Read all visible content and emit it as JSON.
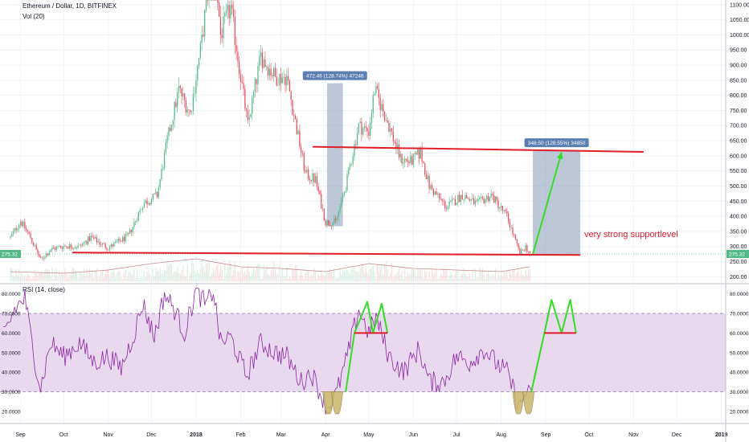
{
  "header": {
    "title": "Ethereum / Dollar, 1D, BITFINEX",
    "volume_label": "Vol (20)",
    "rsi_label": "RSI (14, close)"
  },
  "colors": {
    "up": "#53b987",
    "down": "#eb4d5c",
    "rsi_line": "#8e24aa",
    "rsi_band": "#e8d9ee",
    "annotation_red": "#e11d2a",
    "annotation_green": "#33dd22",
    "measure_box": "#8fa3bd",
    "measure_label_bg": "#5b7fb3",
    "last_price_bg": "#53b987",
    "dip_fill": "#c9b46a"
  },
  "chart_data": [
    {
      "type": "candlestick",
      "title": "Ethereum / Dollar, 1D, BITFINEX",
      "x_ticks": [
        "Sep",
        "Oct",
        "Nov",
        "Dec",
        "2018",
        "Feb",
        "Mar",
        "Apr",
        "May",
        "Jun",
        "Jul",
        "Aug",
        "Sep",
        "Oct",
        "Nov",
        "Dec",
        "2019"
      ],
      "y_ticks": [
        200,
        250,
        300,
        350,
        400,
        450,
        500,
        550,
        600,
        650,
        700,
        750,
        800,
        850,
        900,
        950,
        1000,
        1050,
        1100
      ],
      "y_tick_labels": [
        "200.00",
        "250.00",
        "300.00",
        "350.00",
        "400.00",
        "450.00",
        "500.00",
        "550.00",
        "600.00",
        "650.00",
        "700.00",
        "750.00",
        "800.00",
        "850.00",
        "900.00",
        "950.00",
        "1000.00",
        "1050.00",
        "1100.00"
      ],
      "ylim": [
        185,
        1110
      ],
      "last_price": 275.32,
      "last_price_label": "275.32",
      "left_axis_marker": "275.32",
      "close_path": [
        {
          "date": "2017-08-25",
          "price": 330
        },
        {
          "date": "2017-09-01",
          "price": 385
        },
        {
          "date": "2017-09-08",
          "price": 330
        },
        {
          "date": "2017-09-15",
          "price": 255
        },
        {
          "date": "2017-09-22",
          "price": 290
        },
        {
          "date": "2017-10-01",
          "price": 302
        },
        {
          "date": "2017-10-12",
          "price": 300
        },
        {
          "date": "2017-10-20",
          "price": 330
        },
        {
          "date": "2017-11-01",
          "price": 295
        },
        {
          "date": "2017-11-15",
          "price": 335
        },
        {
          "date": "2017-11-25",
          "price": 440
        },
        {
          "date": "2017-12-05",
          "price": 470
        },
        {
          "date": "2017-12-12",
          "price": 650
        },
        {
          "date": "2017-12-20",
          "price": 820
        },
        {
          "date": "2017-12-28",
          "price": 740
        },
        {
          "date": "2018-01-05",
          "price": 980
        },
        {
          "date": "2018-01-13",
          "price": 1300
        },
        {
          "date": "2018-01-18",
          "price": 1000
        },
        {
          "date": "2018-01-25",
          "price": 1090
        },
        {
          "date": "2018-02-06",
          "price": 700
        },
        {
          "date": "2018-02-15",
          "price": 930
        },
        {
          "date": "2018-02-25",
          "price": 860
        },
        {
          "date": "2018-03-05",
          "price": 860
        },
        {
          "date": "2018-03-18",
          "price": 540
        },
        {
          "date": "2018-03-25",
          "price": 520
        },
        {
          "date": "2018-04-01",
          "price": 380
        },
        {
          "date": "2018-04-08",
          "price": 380
        },
        {
          "date": "2018-04-15",
          "price": 500
        },
        {
          "date": "2018-04-24",
          "price": 700
        },
        {
          "date": "2018-05-01",
          "price": 680
        },
        {
          "date": "2018-05-05",
          "price": 820
        },
        {
          "date": "2018-05-15",
          "price": 700
        },
        {
          "date": "2018-05-23",
          "price": 590
        },
        {
          "date": "2018-05-30",
          "price": 580
        },
        {
          "date": "2018-06-06",
          "price": 610
        },
        {
          "date": "2018-06-12",
          "price": 500
        },
        {
          "date": "2018-06-24",
          "price": 430
        },
        {
          "date": "2018-07-05",
          "price": 470
        },
        {
          "date": "2018-07-15",
          "price": 440
        },
        {
          "date": "2018-07-25",
          "price": 470
        },
        {
          "date": "2018-08-05",
          "price": 400
        },
        {
          "date": "2018-08-14",
          "price": 275
        },
        {
          "date": "2018-08-18",
          "price": 300
        },
        {
          "date": "2018-08-21",
          "price": 275
        }
      ],
      "volume_ma_path": [
        {
          "date": "2017-08-25",
          "volume": 0.3
        },
        {
          "date": "2017-10-01",
          "volume": 0.25
        },
        {
          "date": "2017-11-01",
          "volume": 0.35
        },
        {
          "date": "2017-12-01",
          "volume": 0.55
        },
        {
          "date": "2018-01-01",
          "volume": 0.7
        },
        {
          "date": "2018-02-01",
          "volume": 0.45
        },
        {
          "date": "2018-03-01",
          "volume": 0.4
        },
        {
          "date": "2018-04-01",
          "volume": 0.3
        },
        {
          "date": "2018-05-01",
          "volume": 0.55
        },
        {
          "date": "2018-06-01",
          "volume": 0.4
        },
        {
          "date": "2018-07-01",
          "volume": 0.35
        },
        {
          "date": "2018-08-01",
          "volume": 0.3
        },
        {
          "date": "2018-08-21",
          "volume": 0.45
        }
      ],
      "measure_boxes": [
        {
          "label": "472.46 (128.74%) 47246",
          "from_date": "2018-04-02",
          "to_date": "2018-04-13",
          "from_price": 367,
          "to_price": 840
        },
        {
          "label": "348.50 (128.55%) 34850",
          "from_date": "2018-08-23",
          "to_date": "2018-09-25",
          "from_price": 272,
          "to_price": 618
        }
      ],
      "annotations": [
        {
          "text": "very strong supportlevel"
        }
      ],
      "lines": [
        {
          "name": "support",
          "from": {
            "date": "2017-10-07",
            "price": 280
          },
          "to": {
            "date": "2018-09-25",
            "price": 272
          }
        },
        {
          "name": "resistance",
          "from": {
            "date": "2018-03-23",
            "price": 630
          },
          "to": {
            "date": "2018-11-08",
            "price": 613
          }
        }
      ],
      "arrow": {
        "from": {
          "date": "2018-08-23",
          "price": 275
        },
        "to": {
          "date": "2018-09-12",
          "price": 612
        }
      }
    },
    {
      "type": "line",
      "title": "RSI (14, close)",
      "y_ticks": [
        20,
        30,
        40,
        50,
        60,
        70,
        80
      ],
      "y_tick_labels": [
        "20.0000",
        "30.0000",
        "40.0000",
        "50.0000",
        "60.0000",
        "70.0000",
        "80.0000"
      ],
      "ylim": [
        15,
        84
      ],
      "band": [
        30,
        70
      ],
      "rsi_path": [
        {
          "date": "2017-08-20",
          "value": 58
        },
        {
          "date": "2017-08-28",
          "value": 72
        },
        {
          "date": "2017-09-04",
          "value": 78
        },
        {
          "date": "2017-09-10",
          "value": 50
        },
        {
          "date": "2017-09-15",
          "value": 32
        },
        {
          "date": "2017-09-22",
          "value": 55
        },
        {
          "date": "2017-10-01",
          "value": 48
        },
        {
          "date": "2017-10-12",
          "value": 55
        },
        {
          "date": "2017-10-22",
          "value": 45
        },
        {
          "date": "2017-11-01",
          "value": 48
        },
        {
          "date": "2017-11-10",
          "value": 42
        },
        {
          "date": "2017-11-20",
          "value": 62
        },
        {
          "date": "2017-11-25",
          "value": 75
        },
        {
          "date": "2017-12-03",
          "value": 58
        },
        {
          "date": "2017-12-10",
          "value": 80
        },
        {
          "date": "2017-12-17",
          "value": 72
        },
        {
          "date": "2017-12-24",
          "value": 60
        },
        {
          "date": "2018-01-01",
          "value": 82
        },
        {
          "date": "2018-01-08",
          "value": 74
        },
        {
          "date": "2018-01-13",
          "value": 82
        },
        {
          "date": "2018-01-18",
          "value": 55
        },
        {
          "date": "2018-01-25",
          "value": 58
        },
        {
          "date": "2018-02-05",
          "value": 38
        },
        {
          "date": "2018-02-15",
          "value": 55
        },
        {
          "date": "2018-02-25",
          "value": 50
        },
        {
          "date": "2018-03-05",
          "value": 48
        },
        {
          "date": "2018-03-15",
          "value": 35
        },
        {
          "date": "2018-03-22",
          "value": 40
        },
        {
          "date": "2018-03-28",
          "value": 30
        },
        {
          "date": "2018-04-02",
          "value": 22
        },
        {
          "date": "2018-04-08",
          "value": 28
        },
        {
          "date": "2018-04-15",
          "value": 45
        },
        {
          "date": "2018-04-24",
          "value": 72
        },
        {
          "date": "2018-05-01",
          "value": 60
        },
        {
          "date": "2018-05-06",
          "value": 68
        },
        {
          "date": "2018-05-15",
          "value": 48
        },
        {
          "date": "2018-05-25",
          "value": 40
        },
        {
          "date": "2018-06-05",
          "value": 52
        },
        {
          "date": "2018-06-12",
          "value": 35
        },
        {
          "date": "2018-06-22",
          "value": 35
        },
        {
          "date": "2018-07-01",
          "value": 48
        },
        {
          "date": "2018-07-10",
          "value": 45
        },
        {
          "date": "2018-07-20",
          "value": 52
        },
        {
          "date": "2018-07-28",
          "value": 45
        },
        {
          "date": "2018-08-05",
          "value": 40
        },
        {
          "date": "2018-08-10",
          "value": 30
        },
        {
          "date": "2018-08-14",
          "value": 22
        },
        {
          "date": "2018-08-18",
          "value": 30
        },
        {
          "date": "2018-08-22",
          "value": 27
        }
      ],
      "dips": [
        {
          "date": "2018-04-03",
          "level": 30
        },
        {
          "date": "2018-04-09",
          "level": 30
        },
        {
          "date": "2018-08-13",
          "level": 30
        },
        {
          "date": "2018-08-20",
          "level": 30
        }
      ],
      "projection_lines": [
        {
          "color": "green",
          "points": [
            {
              "date": "2018-04-15",
              "value": 30
            },
            {
              "date": "2018-04-21",
              "value": 60
            },
            {
              "date": "2018-04-30",
              "value": 76
            },
            {
              "date": "2018-05-04",
              "value": 60
            },
            {
              "date": "2018-05-10",
              "value": 75
            },
            {
              "date": "2018-05-14",
              "value": 60
            }
          ]
        },
        {
          "color": "green",
          "points": [
            {
              "date": "2018-08-22",
              "value": 30
            },
            {
              "date": "2018-08-31",
              "value": 60
            },
            {
              "date": "2018-09-05",
              "value": 77
            },
            {
              "date": "2018-09-12",
              "value": 60
            },
            {
              "date": "2018-09-18",
              "value": 77
            },
            {
              "date": "2018-09-22",
              "value": 60
            }
          ]
        },
        {
          "color": "red",
          "points": [
            {
              "date": "2018-04-21",
              "value": 60
            },
            {
              "date": "2018-05-14",
              "value": 60
            }
          ]
        },
        {
          "color": "red",
          "points": [
            {
              "date": "2018-08-31",
              "value": 60
            },
            {
              "date": "2018-09-22",
              "value": 60
            }
          ]
        }
      ]
    }
  ]
}
